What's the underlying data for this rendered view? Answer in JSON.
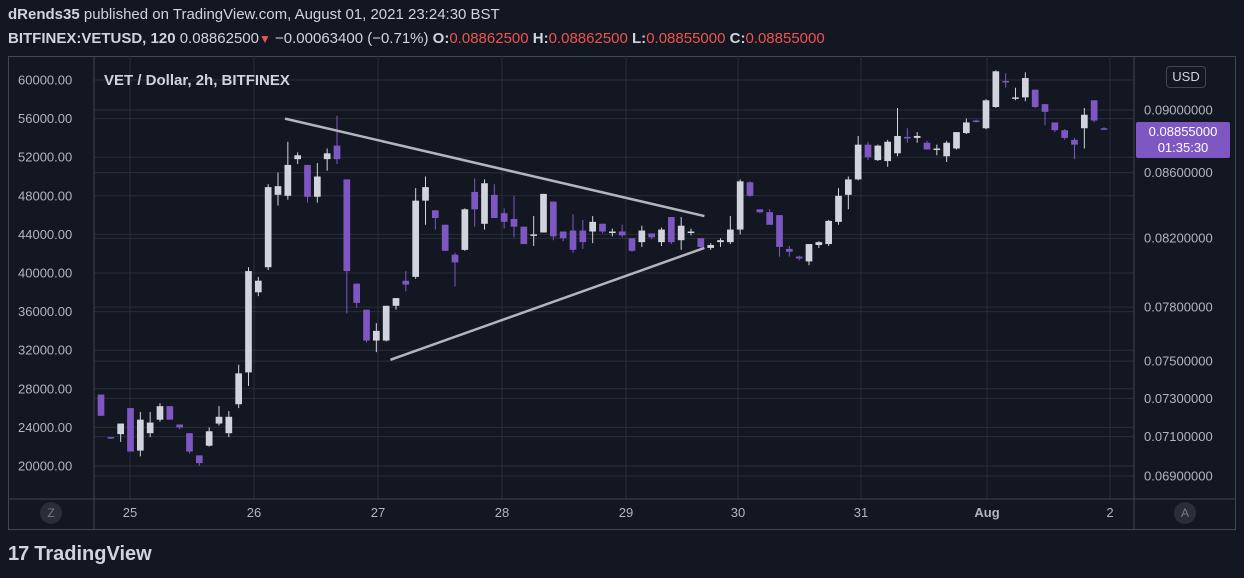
{
  "header": {
    "author": "dRends35",
    "published_text": "published on TradingView.com, August 01, 2021 23:24:30 BST",
    "symbol": "BITFINEX:VETUSD, 120",
    "last": "0.08862500",
    "change": "−0.00063400 (−0.71%)",
    "o_label": "O:",
    "o_val": "0.08862500",
    "h_label": "H:",
    "h_val": "0.08862500",
    "l_label": "L:",
    "l_val": "0.08855000",
    "c_label": "C:",
    "c_val": "0.08855000"
  },
  "chart_title": "VET / Dollar, 2h, BITFINEX",
  "currency_button": "USD",
  "zoom_button": "Z",
  "auto_button": "A",
  "price_tag": {
    "price": "0.08855000",
    "countdown": "01:35:30"
  },
  "logo_text": "TradingView",
  "logo_mark": "17",
  "colors": {
    "up": "#d1d4dc",
    "down": "#7e57c2",
    "background": "#131722",
    "grid": "#2a2e39",
    "trendline": "#b2b5be"
  },
  "chart_data": {
    "type": "candlestick",
    "title": "VET / Dollar, 2h, BITFINEX",
    "x_ticks": [
      "25",
      "26",
      "27",
      "28",
      "29",
      "30",
      "31",
      "Aug",
      "2"
    ],
    "left_axis": {
      "ticks": [
        "20000.00",
        "24000.00",
        "28000.00",
        "32000.00",
        "36000.00",
        "40000.00",
        "44000.00",
        "48000.00",
        "52000.00",
        "56000.00",
        "60000.00"
      ]
    },
    "right_axis": {
      "ticks": [
        "0.06900000",
        "0.07100000",
        "0.07300000",
        "0.07500000",
        "0.07800000",
        "0.08200000",
        "0.08600000",
        "0.09000000"
      ],
      "scale": "log"
    },
    "candles_left_scale": [
      {
        "o": 27400,
        "h": 27400,
        "l": 25200,
        "c": 25200
      },
      {
        "o": 23000,
        "h": 23000,
        "l": 22800,
        "c": 22900
      },
      {
        "o": 23300,
        "h": 24400,
        "l": 22500,
        "c": 24400
      },
      {
        "o": 26000,
        "h": 26000,
        "l": 21500,
        "c": 21500
      },
      {
        "o": 21600,
        "h": 25600,
        "l": 21000,
        "c": 24800
      },
      {
        "o": 23400,
        "h": 25600,
        "l": 23000,
        "c": 24500
      },
      {
        "o": 24800,
        "h": 26500,
        "l": 24600,
        "c": 26200
      },
      {
        "o": 26200,
        "h": 26200,
        "l": 24800,
        "c": 24800
      },
      {
        "o": 24300,
        "h": 24300,
        "l": 23800,
        "c": 24000
      },
      {
        "o": 23400,
        "h": 23400,
        "l": 21300,
        "c": 21500
      },
      {
        "o": 21100,
        "h": 21100,
        "l": 20000,
        "c": 20300
      },
      {
        "o": 22100,
        "h": 24000,
        "l": 22000,
        "c": 23600
      },
      {
        "o": 24400,
        "h": 26200,
        "l": 24200,
        "c": 25100
      },
      {
        "o": 23400,
        "h": 25700,
        "l": 23000,
        "c": 25100
      },
      {
        "o": 26400,
        "h": 30500,
        "l": 26000,
        "c": 29600
      },
      {
        "o": 29700,
        "h": 40600,
        "l": 28300,
        "c": 40200
      },
      {
        "o": 38000,
        "h": 39600,
        "l": 37600,
        "c": 39200
      },
      {
        "o": 40600,
        "h": 49200,
        "l": 40300,
        "c": 48900
      },
      {
        "o": 48100,
        "h": 50400,
        "l": 47000,
        "c": 49000
      },
      {
        "o": 48000,
        "h": 53600,
        "l": 47600,
        "c": 51200
      },
      {
        "o": 51800,
        "h": 52500,
        "l": 51300,
        "c": 52200
      },
      {
        "o": 51200,
        "h": 51200,
        "l": 47300,
        "c": 47900
      },
      {
        "o": 47900,
        "h": 51400,
        "l": 47300,
        "c": 50000
      },
      {
        "o": 51800,
        "h": 52900,
        "l": 50600,
        "c": 52400
      },
      {
        "o": 53200,
        "h": 56300,
        "l": 51300,
        "c": 51800
      },
      {
        "o": 49700,
        "h": 49700,
        "l": 35800,
        "c": 40200
      },
      {
        "o": 38900,
        "h": 38900,
        "l": 36400,
        "c": 36900
      },
      {
        "o": 36200,
        "h": 36200,
        "l": 32800,
        "c": 33000
      },
      {
        "o": 33000,
        "h": 34800,
        "l": 31800,
        "c": 34000
      },
      {
        "o": 33000,
        "h": 36600,
        "l": 32900,
        "c": 36600
      },
      {
        "o": 36600,
        "h": 37200,
        "l": 36200,
        "c": 37400
      },
      {
        "o": 39200,
        "h": 40200,
        "l": 38100,
        "c": 38800
      },
      {
        "o": 39600,
        "h": 48800,
        "l": 39400,
        "c": 47500
      },
      {
        "o": 47500,
        "h": 50000,
        "l": 45000,
        "c": 48900
      },
      {
        "o": 46500,
        "h": 46500,
        "l": 44500,
        "c": 45700
      },
      {
        "o": 45000,
        "h": 45000,
        "l": 42300,
        "c": 42300
      },
      {
        "o": 41900,
        "h": 42100,
        "l": 38600,
        "c": 41100
      },
      {
        "o": 42400,
        "h": 46700,
        "l": 42300,
        "c": 46600
      },
      {
        "o": 48400,
        "h": 49800,
        "l": 44800,
        "c": 46600
      },
      {
        "o": 45100,
        "h": 49700,
        "l": 44500,
        "c": 49300
      },
      {
        "o": 48100,
        "h": 49200,
        "l": 45800,
        "c": 45700
      },
      {
        "o": 46200,
        "h": 46700,
        "l": 44600,
        "c": 45300
      },
      {
        "o": 45600,
        "h": 48000,
        "l": 43700,
        "c": 44800
      },
      {
        "o": 44800,
        "h": 44800,
        "l": 43000,
        "c": 43000
      },
      {
        "o": 44000,
        "h": 45900,
        "l": 42800,
        "c": 44000
      },
      {
        "o": 44200,
        "h": 48200,
        "l": 44200,
        "c": 48200
      },
      {
        "o": 47400,
        "h": 47400,
        "l": 43400,
        "c": 43800
      },
      {
        "o": 44300,
        "h": 44300,
        "l": 43300,
        "c": 43600
      },
      {
        "o": 44400,
        "h": 46100,
        "l": 42100,
        "c": 42400
      },
      {
        "o": 44400,
        "h": 45500,
        "l": 42500,
        "c": 43200
      },
      {
        "o": 44300,
        "h": 45900,
        "l": 43100,
        "c": 45300
      },
      {
        "o": 45100,
        "h": 45100,
        "l": 44100,
        "c": 44300
      },
      {
        "o": 44300,
        "h": 44600,
        "l": 43800,
        "c": 44300
      },
      {
        "o": 44300,
        "h": 45000,
        "l": 43700,
        "c": 43900
      },
      {
        "o": 43600,
        "h": 43600,
        "l": 42200,
        "c": 42300
      },
      {
        "o": 43200,
        "h": 44900,
        "l": 42700,
        "c": 44400
      },
      {
        "o": 44100,
        "h": 44100,
        "l": 43500,
        "c": 43700
      },
      {
        "o": 43200,
        "h": 44700,
        "l": 42800,
        "c": 44500
      },
      {
        "o": 45800,
        "h": 45800,
        "l": 43000,
        "c": 43200
      },
      {
        "o": 43400,
        "h": 45800,
        "l": 42400,
        "c": 44900
      },
      {
        "o": 44200,
        "h": 44600,
        "l": 43900,
        "c": 44300
      },
      {
        "o": 43600,
        "h": 43600,
        "l": 42600,
        "c": 42700
      },
      {
        "o": 42600,
        "h": 43100,
        "l": 42400,
        "c": 42900
      },
      {
        "o": 43200,
        "h": 43600,
        "l": 42700,
        "c": 43400
      },
      {
        "o": 43200,
        "h": 45900,
        "l": 43000,
        "c": 44500
      },
      {
        "o": 44500,
        "h": 49700,
        "l": 44000,
        "c": 49500
      },
      {
        "o": 49400,
        "h": 49500,
        "l": 47900,
        "c": 48000
      },
      {
        "o": 46600,
        "h": 46600,
        "l": 46200,
        "c": 46300
      },
      {
        "o": 46300,
        "h": 46600,
        "l": 45000,
        "c": 45000
      },
      {
        "o": 46000,
        "h": 46000,
        "l": 41700,
        "c": 42700
      },
      {
        "o": 42500,
        "h": 42800,
        "l": 41700,
        "c": 42200
      },
      {
        "o": 41700,
        "h": 41800,
        "l": 41300,
        "c": 41500
      },
      {
        "o": 41200,
        "h": 43000,
        "l": 40800,
        "c": 43000
      },
      {
        "o": 42900,
        "h": 43300,
        "l": 42600,
        "c": 43200
      },
      {
        "o": 43000,
        "h": 45500,
        "l": 42800,
        "c": 45400
      },
      {
        "o": 45300,
        "h": 48800,
        "l": 45000,
        "c": 48000
      },
      {
        "o": 48100,
        "h": 50000,
        "l": 46600,
        "c": 49700
      },
      {
        "o": 49700,
        "h": 54200,
        "l": 49600,
        "c": 53300
      },
      {
        "o": 53300,
        "h": 53600,
        "l": 51700,
        "c": 52000
      },
      {
        "o": 51700,
        "h": 53300,
        "l": 51600,
        "c": 53200
      },
      {
        "o": 51600,
        "h": 53800,
        "l": 51000,
        "c": 53600
      },
      {
        "o": 52400,
        "h": 57100,
        "l": 52100,
        "c": 54200
      },
      {
        "o": 54100,
        "h": 55000,
        "l": 53500,
        "c": 54000
      },
      {
        "o": 54000,
        "h": 54600,
        "l": 53500,
        "c": 54200
      },
      {
        "o": 53500,
        "h": 53700,
        "l": 52800,
        "c": 52800
      },
      {
        "o": 52900,
        "h": 53300,
        "l": 52200,
        "c": 52900
      },
      {
        "o": 52100,
        "h": 53700,
        "l": 51500,
        "c": 53500
      },
      {
        "o": 52900,
        "h": 54600,
        "l": 52800,
        "c": 54600
      },
      {
        "o": 54500,
        "h": 56000,
        "l": 54400,
        "c": 55600
      },
      {
        "o": 55800,
        "h": 55900,
        "l": 55600,
        "c": 55700
      },
      {
        "o": 55000,
        "h": 58000,
        "l": 54900,
        "c": 57900
      },
      {
        "o": 57200,
        "h": 61000,
        "l": 57100,
        "c": 60900
      },
      {
        "o": 59900,
        "h": 60700,
        "l": 59200,
        "c": 59800
      },
      {
        "o": 58200,
        "h": 59200,
        "l": 57900,
        "c": 58200
      },
      {
        "o": 58200,
        "h": 60800,
        "l": 57800,
        "c": 60200
      },
      {
        "o": 59000,
        "h": 59000,
        "l": 57100,
        "c": 57200
      },
      {
        "o": 57500,
        "h": 57500,
        "l": 55300,
        "c": 56700
      },
      {
        "o": 55600,
        "h": 55600,
        "l": 54600,
        "c": 54800
      },
      {
        "o": 54800,
        "h": 54900,
        "l": 53800,
        "c": 54000
      },
      {
        "o": 53800,
        "h": 54000,
        "l": 51800,
        "c": 53300
      },
      {
        "o": 55000,
        "h": 57100,
        "l": 52900,
        "c": 56400
      },
      {
        "o": 57900,
        "h": 57900,
        "l": 55600,
        "c": 55800
      },
      {
        "o": 55000,
        "h": 55100,
        "l": 54800,
        "c": 54900
      }
    ],
    "trendlines": [
      {
        "from": {
          "x": "26.25",
          "y": 56000
        },
        "to": {
          "x": "29.7",
          "y": 45900
        }
      },
      {
        "from": {
          "x": "27.1",
          "y": 31000
        },
        "to": {
          "x": "29.7",
          "y": 42600
        }
      }
    ]
  }
}
